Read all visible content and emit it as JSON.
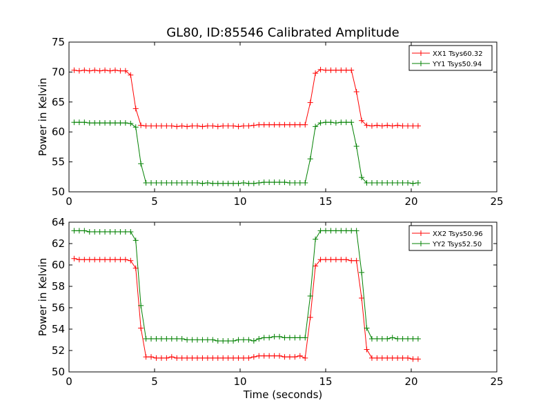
{
  "chart_data": [
    {
      "type": "line",
      "title": "GL80, ID:85546 Calibrated Amplitude",
      "xlabel": "",
      "ylabel": "Power in Kelvin",
      "xlim": [
        0,
        25
      ],
      "ylim": [
        50,
        75
      ],
      "xticks": [
        0,
        5,
        10,
        15,
        20,
        25
      ],
      "yticks": [
        50,
        55,
        60,
        65,
        70,
        75
      ],
      "grid": false,
      "legend_position": "top-right",
      "series": [
        {
          "name": "XX1 Tsys60.32",
          "color": "#ff0000",
          "x": [
            0.3,
            0.6,
            0.9,
            1.2,
            1.5,
            1.8,
            2.1,
            2.4,
            2.7,
            3.0,
            3.3,
            3.6,
            3.9,
            4.2,
            4.5,
            4.8,
            5.1,
            5.4,
            5.7,
            6.0,
            6.3,
            6.6,
            6.9,
            7.2,
            7.5,
            7.8,
            8.1,
            8.4,
            8.7,
            9.0,
            9.3,
            9.6,
            9.9,
            10.2,
            10.5,
            10.8,
            11.1,
            11.4,
            11.7,
            12.0,
            12.3,
            12.6,
            12.9,
            13.2,
            13.5,
            13.8,
            14.1,
            14.4,
            14.7,
            15.0,
            15.3,
            15.6,
            15.9,
            16.2,
            16.5,
            16.8,
            17.1,
            17.4,
            17.7,
            18.0,
            18.3,
            18.6,
            18.9,
            19.2,
            19.5,
            19.8,
            20.1,
            20.4
          ],
          "values": [
            70.3,
            70.2,
            70.3,
            70.2,
            70.3,
            70.2,
            70.3,
            70.2,
            70.3,
            70.2,
            70.2,
            69.5,
            63.9,
            61.1,
            61.0,
            61.0,
            61.0,
            61.0,
            61.0,
            61.0,
            60.9,
            61.0,
            60.9,
            61.0,
            61.0,
            60.9,
            61.0,
            61.0,
            60.9,
            61.0,
            61.0,
            61.0,
            60.9,
            61.0,
            61.0,
            61.1,
            61.2,
            61.2,
            61.2,
            61.2,
            61.2,
            61.2,
            61.2,
            61.2,
            61.2,
            61.2,
            64.9,
            69.8,
            70.4,
            70.3,
            70.3,
            70.3,
            70.3,
            70.3,
            70.3,
            66.7,
            61.9,
            61.1,
            61.0,
            61.1,
            61.0,
            61.1,
            61.0,
            61.1,
            61.0,
            61.0,
            61.0,
            61.0
          ]
        },
        {
          "name": "YY1 Tsys50.94",
          "color": "#008000",
          "x": [
            0.3,
            0.6,
            0.9,
            1.2,
            1.5,
            1.8,
            2.1,
            2.4,
            2.7,
            3.0,
            3.3,
            3.6,
            3.9,
            4.2,
            4.5,
            4.8,
            5.1,
            5.4,
            5.7,
            6.0,
            6.3,
            6.6,
            6.9,
            7.2,
            7.5,
            7.8,
            8.1,
            8.4,
            8.7,
            9.0,
            9.3,
            9.6,
            9.9,
            10.2,
            10.5,
            10.8,
            11.1,
            11.4,
            11.7,
            12.0,
            12.3,
            12.6,
            12.9,
            13.2,
            13.5,
            13.8,
            14.1,
            14.4,
            14.7,
            15.0,
            15.3,
            15.6,
            15.9,
            16.2,
            16.5,
            16.8,
            17.1,
            17.4,
            17.7,
            18.0,
            18.3,
            18.6,
            18.9,
            19.2,
            19.5,
            19.8,
            20.1,
            20.4
          ],
          "values": [
            61.6,
            61.6,
            61.6,
            61.5,
            61.5,
            61.5,
            61.5,
            61.5,
            61.5,
            61.5,
            61.5,
            61.4,
            60.8,
            54.7,
            51.5,
            51.5,
            51.5,
            51.5,
            51.5,
            51.5,
            51.5,
            51.5,
            51.5,
            51.5,
            51.5,
            51.4,
            51.5,
            51.4,
            51.4,
            51.4,
            51.4,
            51.4,
            51.4,
            51.5,
            51.4,
            51.4,
            51.5,
            51.6,
            51.6,
            51.6,
            51.6,
            51.6,
            51.5,
            51.5,
            51.5,
            51.5,
            55.5,
            60.9,
            61.5,
            61.6,
            61.6,
            61.5,
            61.6,
            61.6,
            61.6,
            57.6,
            52.4,
            51.5,
            51.5,
            51.5,
            51.5,
            51.5,
            51.5,
            51.5,
            51.5,
            51.5,
            51.4,
            51.5
          ]
        }
      ]
    },
    {
      "type": "line",
      "title": "",
      "xlabel": "Time (seconds)",
      "ylabel": "Power in Kelvin",
      "xlim": [
        0,
        25
      ],
      "ylim": [
        50,
        64
      ],
      "xticks": [
        0,
        5,
        10,
        15,
        20,
        25
      ],
      "yticks": [
        50,
        52,
        54,
        56,
        58,
        60,
        62,
        64
      ],
      "grid": false,
      "legend_position": "top-right",
      "series": [
        {
          "name": "XX2 Tsys50.96",
          "color": "#ff0000",
          "x": [
            0.3,
            0.6,
            0.9,
            1.2,
            1.5,
            1.8,
            2.1,
            2.4,
            2.7,
            3.0,
            3.3,
            3.6,
            3.9,
            4.2,
            4.5,
            4.8,
            5.1,
            5.4,
            5.7,
            6.0,
            6.3,
            6.6,
            6.9,
            7.2,
            7.5,
            7.8,
            8.1,
            8.4,
            8.7,
            9.0,
            9.3,
            9.6,
            9.9,
            10.2,
            10.5,
            10.8,
            11.1,
            11.4,
            11.7,
            12.0,
            12.3,
            12.6,
            12.9,
            13.2,
            13.5,
            13.8,
            14.1,
            14.4,
            14.7,
            15.0,
            15.3,
            15.6,
            15.9,
            16.2,
            16.5,
            16.8,
            17.1,
            17.4,
            17.7,
            18.0,
            18.3,
            18.6,
            18.9,
            19.2,
            19.5,
            19.8,
            20.1,
            20.4
          ],
          "values": [
            60.6,
            60.5,
            60.5,
            60.5,
            60.5,
            60.5,
            60.5,
            60.5,
            60.5,
            60.5,
            60.5,
            60.4,
            59.7,
            54.1,
            51.4,
            51.4,
            51.3,
            51.3,
            51.3,
            51.4,
            51.3,
            51.3,
            51.3,
            51.3,
            51.3,
            51.3,
            51.3,
            51.3,
            51.3,
            51.3,
            51.3,
            51.3,
            51.3,
            51.3,
            51.3,
            51.4,
            51.5,
            51.5,
            51.5,
            51.5,
            51.5,
            51.4,
            51.4,
            51.4,
            51.5,
            51.3,
            55.1,
            59.9,
            60.5,
            60.5,
            60.5,
            60.5,
            60.5,
            60.5,
            60.4,
            60.4,
            56.9,
            52.1,
            51.3,
            51.3,
            51.3,
            51.3,
            51.3,
            51.3,
            51.3,
            51.3,
            51.2,
            51.2
          ]
        },
        {
          "name": "YY2 Tsys52.50",
          "color": "#008000",
          "x": [
            0.3,
            0.6,
            0.9,
            1.2,
            1.5,
            1.8,
            2.1,
            2.4,
            2.7,
            3.0,
            3.3,
            3.6,
            3.9,
            4.2,
            4.5,
            4.8,
            5.1,
            5.4,
            5.7,
            6.0,
            6.3,
            6.6,
            6.9,
            7.2,
            7.5,
            7.8,
            8.1,
            8.4,
            8.7,
            9.0,
            9.3,
            9.6,
            9.9,
            10.2,
            10.5,
            10.8,
            11.1,
            11.4,
            11.7,
            12.0,
            12.3,
            12.6,
            12.9,
            13.2,
            13.5,
            13.8,
            14.1,
            14.4,
            14.7,
            15.0,
            15.3,
            15.6,
            15.9,
            16.2,
            16.5,
            16.8,
            17.1,
            17.4,
            17.7,
            18.0,
            18.3,
            18.6,
            18.9,
            19.2,
            19.5,
            19.8,
            20.1,
            20.4
          ],
          "values": [
            63.2,
            63.2,
            63.2,
            63.1,
            63.1,
            63.1,
            63.1,
            63.1,
            63.1,
            63.1,
            63.1,
            63.1,
            62.3,
            56.2,
            53.1,
            53.1,
            53.1,
            53.1,
            53.1,
            53.1,
            53.1,
            53.1,
            53.0,
            53.0,
            53.0,
            53.0,
            53.0,
            53.0,
            52.9,
            52.9,
            52.9,
            52.9,
            53.0,
            53.0,
            53.0,
            52.9,
            53.1,
            53.2,
            53.2,
            53.3,
            53.3,
            53.2,
            53.2,
            53.2,
            53.2,
            53.2,
            57.1,
            62.4,
            63.2,
            63.2,
            63.2,
            63.2,
            63.2,
            63.2,
            63.2,
            63.2,
            59.3,
            54.1,
            53.1,
            53.1,
            53.1,
            53.1,
            53.2,
            53.1,
            53.1,
            53.1,
            53.1,
            53.1
          ]
        }
      ]
    }
  ]
}
